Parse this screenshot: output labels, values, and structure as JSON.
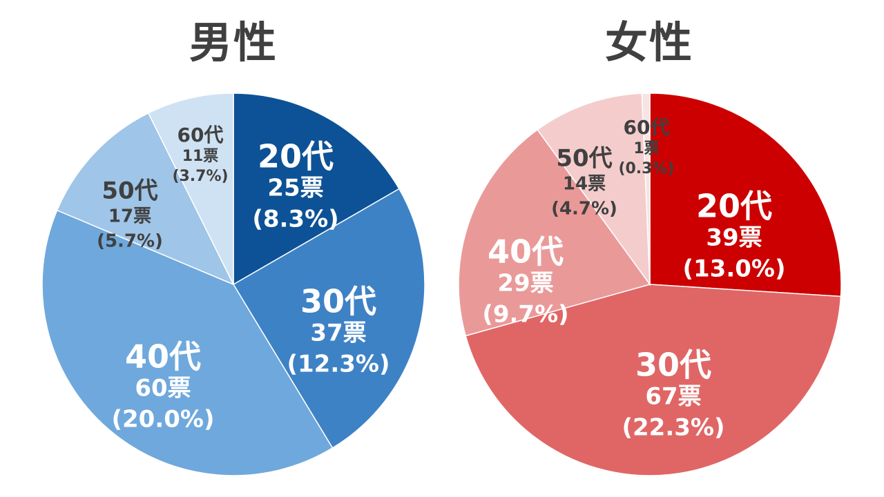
{
  "chart_data": [
    {
      "type": "pie",
      "title": "男性",
      "start_angle_deg": 0,
      "direction": "clockwise",
      "slices": [
        {
          "label": "20代",
          "votes": "25票",
          "percent_text": "(8.3%)",
          "value": 25,
          "color": "#0D5296",
          "text_color": "#ffffff",
          "size": "large"
        },
        {
          "label": "30代",
          "votes": "37票",
          "percent_text": "(12.3%)",
          "value": 37,
          "color": "#3E82C6",
          "text_color": "#ffffff",
          "size": "large"
        },
        {
          "label": "40代",
          "votes": "60票",
          "percent_text": "(20.0%)",
          "value": 60,
          "color": "#6FA8DC",
          "text_color": "#ffffff",
          "size": "large"
        },
        {
          "label": "50代",
          "votes": "17票",
          "percent_text": "(5.7%)",
          "value": 17,
          "color": "#9FC5E8",
          "text_color": "#404040",
          "size": "medium"
        },
        {
          "label": "60代",
          "votes": "11票",
          "percent_text": "(3.7%)",
          "value": 11,
          "color": "#CFE2F3",
          "text_color": "#404040",
          "size": "small"
        }
      ]
    },
    {
      "type": "pie",
      "title": "女性",
      "start_angle_deg": 0,
      "direction": "clockwise",
      "slices": [
        {
          "label": "20代",
          "votes": "39票",
          "percent_text": "(13.0%)",
          "value": 39,
          "color": "#CC0000",
          "text_color": "#ffffff",
          "size": "large"
        },
        {
          "label": "30代",
          "votes": "67票",
          "percent_text": "(22.3%)",
          "value": 67,
          "color": "#E06666",
          "text_color": "#ffffff",
          "size": "large"
        },
        {
          "label": "40代",
          "votes": "29票",
          "percent_text": "(9.7%)",
          "value": 29,
          "color": "#EA9999",
          "text_color": "#ffffff",
          "size": "large"
        },
        {
          "label": "50代",
          "votes": "14票",
          "percent_text": "(4.7%)",
          "value": 14,
          "color": "#F4CCCC",
          "text_color": "#404040",
          "size": "medium"
        },
        {
          "label": "60代",
          "votes": "1票",
          "percent_text": "(0.3%)",
          "value": 1,
          "color": "#F9E3E3",
          "text_color": "#404040",
          "size": "small"
        }
      ]
    }
  ]
}
